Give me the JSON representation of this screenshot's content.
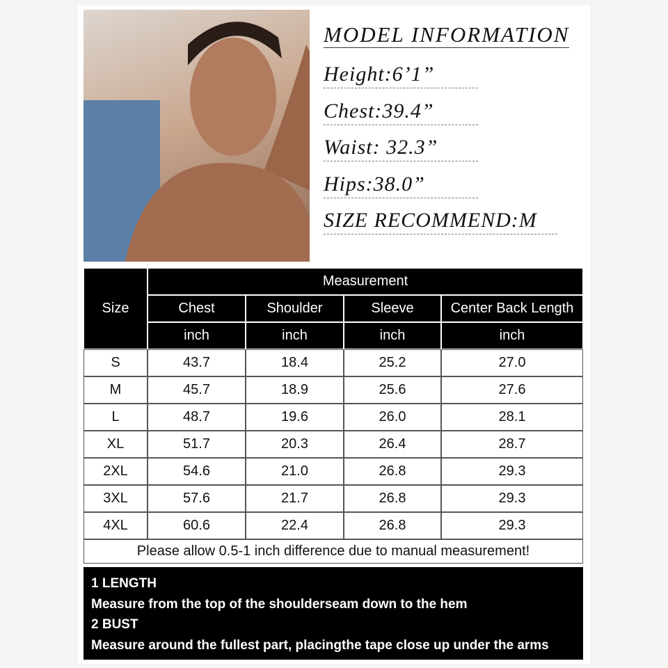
{
  "model_info": {
    "title": "MODEL INFORMATION",
    "lines": [
      "Height:6’1”",
      "Chest:39.4”",
      "Waist: 32.3”",
      "Hips:38.0”",
      "SIZE RECOMMEND:M"
    ]
  },
  "table": {
    "size_header": "Size",
    "group_header": "Measurement",
    "columns": [
      "Chest",
      "Shoulder",
      "Sleeve",
      "Center Back Length"
    ],
    "units": [
      "inch",
      "inch",
      "inch",
      "inch"
    ],
    "rows": [
      [
        "S",
        "43.7",
        "18.4",
        "25.2",
        "27.0"
      ],
      [
        "M",
        "45.7",
        "18.9",
        "25.6",
        "27.6"
      ],
      [
        "L",
        "48.7",
        "19.6",
        "26.0",
        "28.1"
      ],
      [
        "XL",
        "51.7",
        "20.3",
        "26.4",
        "28.7"
      ],
      [
        "2XL",
        "54.6",
        "21.0",
        "26.8",
        "29.3"
      ],
      [
        "3XL",
        "57.6",
        "21.7",
        "26.8",
        "29.3"
      ],
      [
        "4XL",
        "60.6",
        "22.4",
        "26.8",
        "29.3"
      ]
    ],
    "note": "Please allow 0.5-1 inch difference due to manual measurement!"
  },
  "instructions": [
    "1 LENGTH",
    "Measure from the top of the shoulderseam down to the hem",
    "2 BUST",
    "Measure around the fullest part, placingthe tape close up under the arms"
  ]
}
